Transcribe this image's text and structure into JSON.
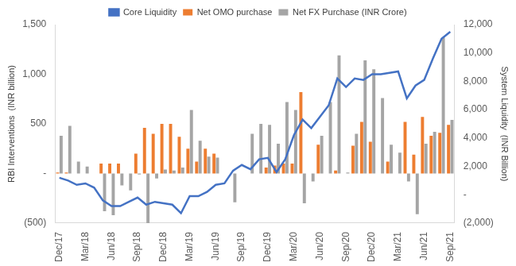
{
  "chart_data": {
    "type": "bar",
    "legend": "top",
    "grid": false,
    "y_label": "RBI Interventions  (INR billion)",
    "y2_label": "System Liquidity  (INR Billion)",
    "categories": [
      "Dec/17",
      null,
      null,
      "Mar/18",
      null,
      null,
      "Jun/18",
      null,
      null,
      "Sep/18",
      null,
      null,
      "Dec/18",
      null,
      null,
      "Mar/19",
      null,
      null,
      "Jun/19",
      null,
      null,
      "Sep/19",
      null,
      null,
      "Dec/19",
      null,
      null,
      "Mar/20",
      null,
      null,
      "Jun/20",
      null,
      null,
      "Sep/20",
      null,
      null,
      "Dec/20",
      null,
      null,
      "Mar/21",
      null,
      null,
      "Jun/21",
      null,
      null,
      "Sep/21"
    ],
    "ylim": [
      -500,
      1500
    ],
    "yticks": [
      {
        "value": -500,
        "label": "(500)"
      },
      {
        "value": 0,
        "label": "-"
      },
      500,
      {
        "value": 1000,
        "label": "1,000"
      },
      {
        "value": 1500,
        "label": "1,500"
      }
    ],
    "y2lim": [
      -2000,
      12000
    ],
    "y2ticks": [
      {
        "value": -2000,
        "label": "(2,000)"
      },
      {
        "value": 0,
        "label": "-"
      },
      {
        "value": 2000,
        "label": "2,000"
      },
      {
        "value": 4000,
        "label": "4,000"
      },
      {
        "value": 6000,
        "label": "6,000"
      },
      {
        "value": 8000,
        "label": "8,000"
      },
      {
        "value": 10000,
        "label": "10,000"
      },
      {
        "value": 12000,
        "label": "12,000"
      }
    ],
    "series": [
      {
        "name": "Net OMO purchase",
        "type": "bar",
        "color": "#ed7d31",
        "values": [
          10,
          10,
          0,
          0,
          0,
          100,
          100,
          100,
          0,
          200,
          460,
          400,
          500,
          500,
          370,
          250,
          120,
          250,
          200,
          0,
          0,
          0,
          0,
          0,
          60,
          80,
          100,
          100,
          820,
          0,
          290,
          0,
          30,
          0,
          280,
          520,
          320,
          0,
          120,
          0,
          520,
          190,
          570,
          380,
          410,
          490
        ]
      },
      {
        "name": "Net FX Purchase (INR Crore)",
        "type": "bar",
        "color": "#a5a5a5",
        "values": [
          380,
          480,
          120,
          70,
          0,
          -380,
          -420,
          -120,
          -170,
          -10,
          -500,
          -50,
          40,
          30,
          60,
          640,
          330,
          170,
          160,
          0,
          -290,
          0,
          400,
          500,
          490,
          300,
          720,
          640,
          -300,
          -80,
          380,
          720,
          1190,
          10,
          400,
          1140,
          1050,
          760,
          290,
          210,
          -80,
          -410,
          300,
          420,
          1370,
          540
        ]
      },
      {
        "name": "Core Liquidity",
        "type": "line",
        "axis": "y2",
        "color": "#4472c4",
        "values": [
          1200,
          1000,
          700,
          800,
          500,
          -400,
          -800,
          -800,
          -500,
          -200,
          -700,
          -500,
          -600,
          -700,
          -1300,
          -100,
          -100,
          200,
          700,
          800,
          1700,
          2100,
          1800,
          2500,
          2600,
          1600,
          2500,
          4200,
          5300,
          4700,
          5500,
          6300,
          8200,
          7600,
          8200,
          8100,
          8500,
          8500,
          8600,
          8700,
          6800,
          7700,
          8100,
          9600,
          11000,
          11500
        ]
      }
    ]
  }
}
